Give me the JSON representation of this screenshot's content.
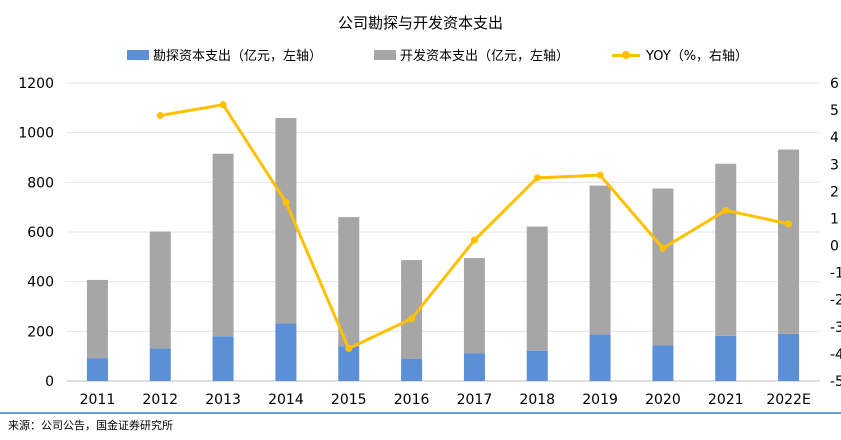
{
  "chart_data": {
    "type": "bar",
    "title": "公司勘探与开发资本支出",
    "categories": [
      "2011",
      "2012",
      "2013",
      "2014",
      "2015",
      "2016",
      "2017",
      "2018",
      "2019",
      "2020",
      "2021",
      "2022E"
    ],
    "series": [
      {
        "name": "勘探资本支出（亿元，左轴）",
        "type": "bar",
        "stack": "capex",
        "color": "#5b8fd6",
        "values": [
          92,
          132,
          180,
          232,
          140,
          90,
          112,
          122,
          187,
          143,
          182,
          190
        ]
      },
      {
        "name": "开发资本支出（亿元，左轴）",
        "type": "bar",
        "stack": "capex",
        "color": "#a6a6a6",
        "values": [
          315,
          470,
          735,
          827,
          520,
          397,
          383,
          500,
          600,
          632,
          693,
          742
        ]
      },
      {
        "name": "YOY（%，右轴）",
        "type": "line",
        "axis": "right",
        "color": "#ffc000",
        "values": [
          null,
          48,
          52,
          16,
          -38,
          -27,
          2,
          25,
          26,
          -1,
          13,
          8
        ]
      }
    ],
    "y_left": {
      "ylim": [
        0,
        1200
      ],
      "ticks": [
        "0",
        "200",
        "400",
        "600",
        "800",
        "1000",
        "1200"
      ]
    },
    "y_right": {
      "ylim": [
        -50,
        60
      ],
      "ticks": [
        "-5",
        "-4",
        "-3",
        "-2",
        "-1",
        "0",
        "1",
        "2",
        "3",
        "4",
        "5",
        "6"
      ]
    },
    "grid": true,
    "legend_position": "top"
  },
  "source_note": "来源：公司公告，国金证券研究所"
}
